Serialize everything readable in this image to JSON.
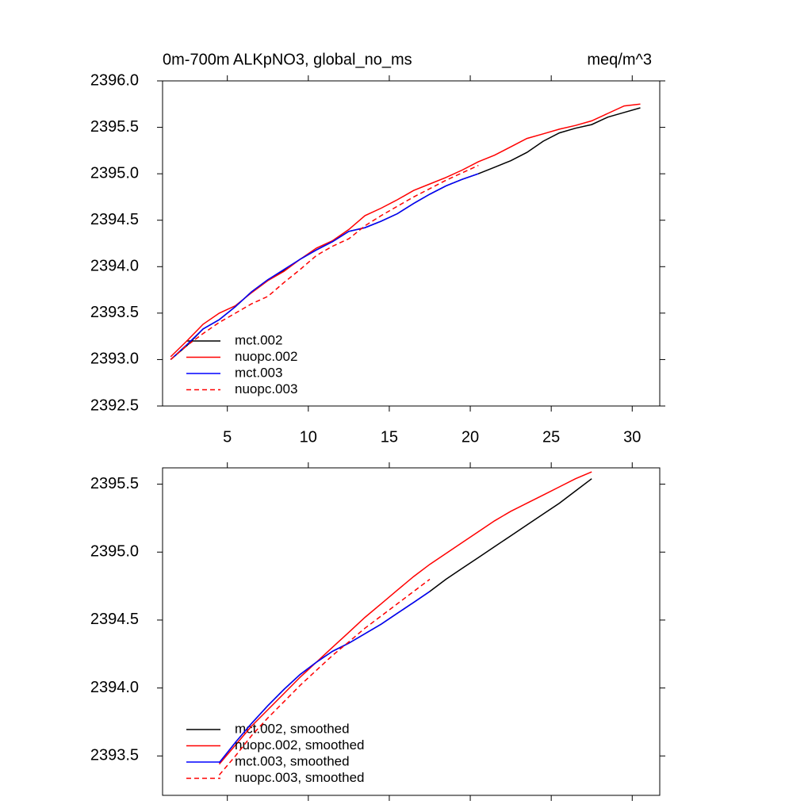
{
  "chart_data": [
    {
      "type": "line",
      "title": "0m-700m ALKpNO3, global_no_ms",
      "units": "meq/m^3",
      "x": [
        1.5,
        2.5,
        3.5,
        4.5,
        5.5,
        6.5,
        7.5,
        8.5,
        9.5,
        10.5,
        11.5,
        12.5,
        13.5,
        14.5,
        15.5,
        16.5,
        17.5,
        18.5,
        19.5,
        20.5,
        21.5,
        22.5,
        23.5,
        24.5,
        25.5,
        26.5,
        27.5,
        28.5,
        29.5,
        30.5
      ],
      "series": [
        {
          "name": "mct.002",
          "color": "#000000",
          "dash": false,
          "values": [
            2393.0,
            2393.15,
            2393.33,
            2393.43,
            2393.57,
            2393.73,
            2393.86,
            2393.96,
            2394.08,
            2394.18,
            2394.27,
            2394.38,
            2394.42,
            2394.49,
            2394.57,
            2394.68,
            2394.78,
            2394.87,
            2394.94,
            2395.0,
            2395.07,
            2395.14,
            2395.23,
            2395.35,
            2395.44,
            2395.49,
            2395.53,
            2395.61,
            2395.66,
            2395.71
          ]
        },
        {
          "name": "nuopc.002",
          "color": "#ff0000",
          "dash": false,
          "values": [
            2393.03,
            2393.2,
            2393.38,
            2393.5,
            2393.58,
            2393.72,
            2393.85,
            2393.95,
            2394.08,
            2394.2,
            2394.28,
            2394.4,
            2394.55,
            2394.63,
            2394.72,
            2394.82,
            2394.89,
            2394.96,
            2395.04,
            2395.13,
            2395.2,
            2395.29,
            2395.38,
            2395.43,
            2395.48,
            2395.52,
            2395.57,
            2395.65,
            2395.73,
            2395.75
          ]
        },
        {
          "name": "mct.003",
          "color": "#0000ff",
          "dash": false,
          "values": [
            2393.0,
            2393.16,
            2393.33,
            2393.43,
            2393.57,
            2393.73,
            2393.86,
            2393.97,
            2394.08,
            2394.18,
            2394.27,
            2394.38,
            2394.42,
            2394.49,
            2394.57,
            2394.68,
            2394.78,
            2394.87,
            2394.94,
            2395.0,
            null,
            null,
            null,
            null,
            null,
            null,
            null,
            null,
            null,
            null
          ]
        },
        {
          "name": "nuopc.003",
          "color": "#ff0000",
          "dash": true,
          "values": [
            2393.0,
            2393.15,
            2393.28,
            2393.4,
            2393.5,
            2393.6,
            2393.68,
            2393.83,
            2393.97,
            2394.12,
            2394.22,
            2394.3,
            2394.44,
            2394.55,
            2394.65,
            2394.75,
            2394.84,
            2394.93,
            2395.01,
            2395.09,
            null,
            null,
            null,
            null,
            null,
            null,
            null,
            null,
            null,
            null
          ]
        }
      ],
      "xlim": [
        1,
        31.7
      ],
      "xticks": [
        5,
        10,
        15,
        20,
        25,
        30
      ],
      "xtick_labels": true,
      "ylim": [
        2392.5,
        2396.0
      ],
      "yticks": [
        2392.5,
        {
          "value": 2393,
          "label": "2393.0"
        },
        2393.5,
        {
          "value": 2394,
          "label": "2394.0"
        },
        2394.5,
        {
          "value": 2395,
          "label": "2395.0"
        },
        2395.5,
        {
          "value": 2396,
          "label": "2396.0"
        }
      ]
    },
    {
      "type": "line",
      "x": [
        4.5,
        5.5,
        6.5,
        7.5,
        8.5,
        9.5,
        10.5,
        11.5,
        12.5,
        13.5,
        14.5,
        15.5,
        16.5,
        17.5,
        18.5,
        19.5,
        20.5,
        21.5,
        22.5,
        23.5,
        24.5,
        25.5,
        26.5,
        27.5
      ],
      "series": [
        {
          "name": "mct.002, smoothed",
          "color": "#000000",
          "dash": false,
          "values": [
            2393.45,
            2393.6,
            2393.74,
            2393.87,
            2393.99,
            2394.1,
            2394.19,
            2394.27,
            2394.33,
            2394.4,
            2394.47,
            2394.55,
            2394.63,
            2394.71,
            2394.8,
            2394.88,
            2394.96,
            2395.04,
            2395.12,
            2395.2,
            2395.28,
            2395.36,
            2395.45,
            2395.54
          ]
        },
        {
          "name": "nuopc.002, smoothed",
          "color": "#ff0000",
          "dash": false,
          "values": [
            2393.44,
            2393.58,
            2393.72,
            2393.84,
            2393.96,
            2394.08,
            2394.19,
            2394.3,
            2394.41,
            2394.52,
            2394.62,
            2394.72,
            2394.82,
            2394.91,
            2394.99,
            2395.07,
            2395.15,
            2395.23,
            2395.3,
            2395.36,
            2395.42,
            2395.48,
            2395.54,
            2395.59
          ]
        },
        {
          "name": "mct.003, smoothed",
          "color": "#0000ff",
          "dash": false,
          "values": [
            2393.45,
            2393.6,
            2393.74,
            2393.87,
            2393.99,
            2394.1,
            2394.19,
            2394.27,
            2394.33,
            2394.4,
            2394.47,
            2394.55,
            2394.63,
            2394.71,
            null,
            null,
            null,
            null,
            null,
            null,
            null,
            null,
            null,
            null
          ]
        },
        {
          "name": "nuopc.003, smoothed",
          "color": "#ff0000",
          "dash": true,
          "values": [
            2393.36,
            2393.5,
            2393.65,
            2393.78,
            2393.9,
            2394.02,
            2394.13,
            2394.24,
            2394.34,
            2394.44,
            2394.53,
            2394.62,
            2394.71,
            2394.8,
            null,
            null,
            null,
            null,
            null,
            null,
            null,
            null,
            null,
            null
          ]
        }
      ],
      "xlim": [
        1,
        31.7
      ],
      "xticks": [
        5,
        10,
        15,
        20,
        25,
        30
      ],
      "xtick_labels": false,
      "ylim": [
        2393.21,
        2395.62
      ],
      "yticks": [
        2393.5,
        {
          "value": 2394,
          "label": "2394.0"
        },
        2394.5,
        {
          "value": 2395,
          "label": "2395.0"
        },
        2395.5
      ]
    }
  ]
}
